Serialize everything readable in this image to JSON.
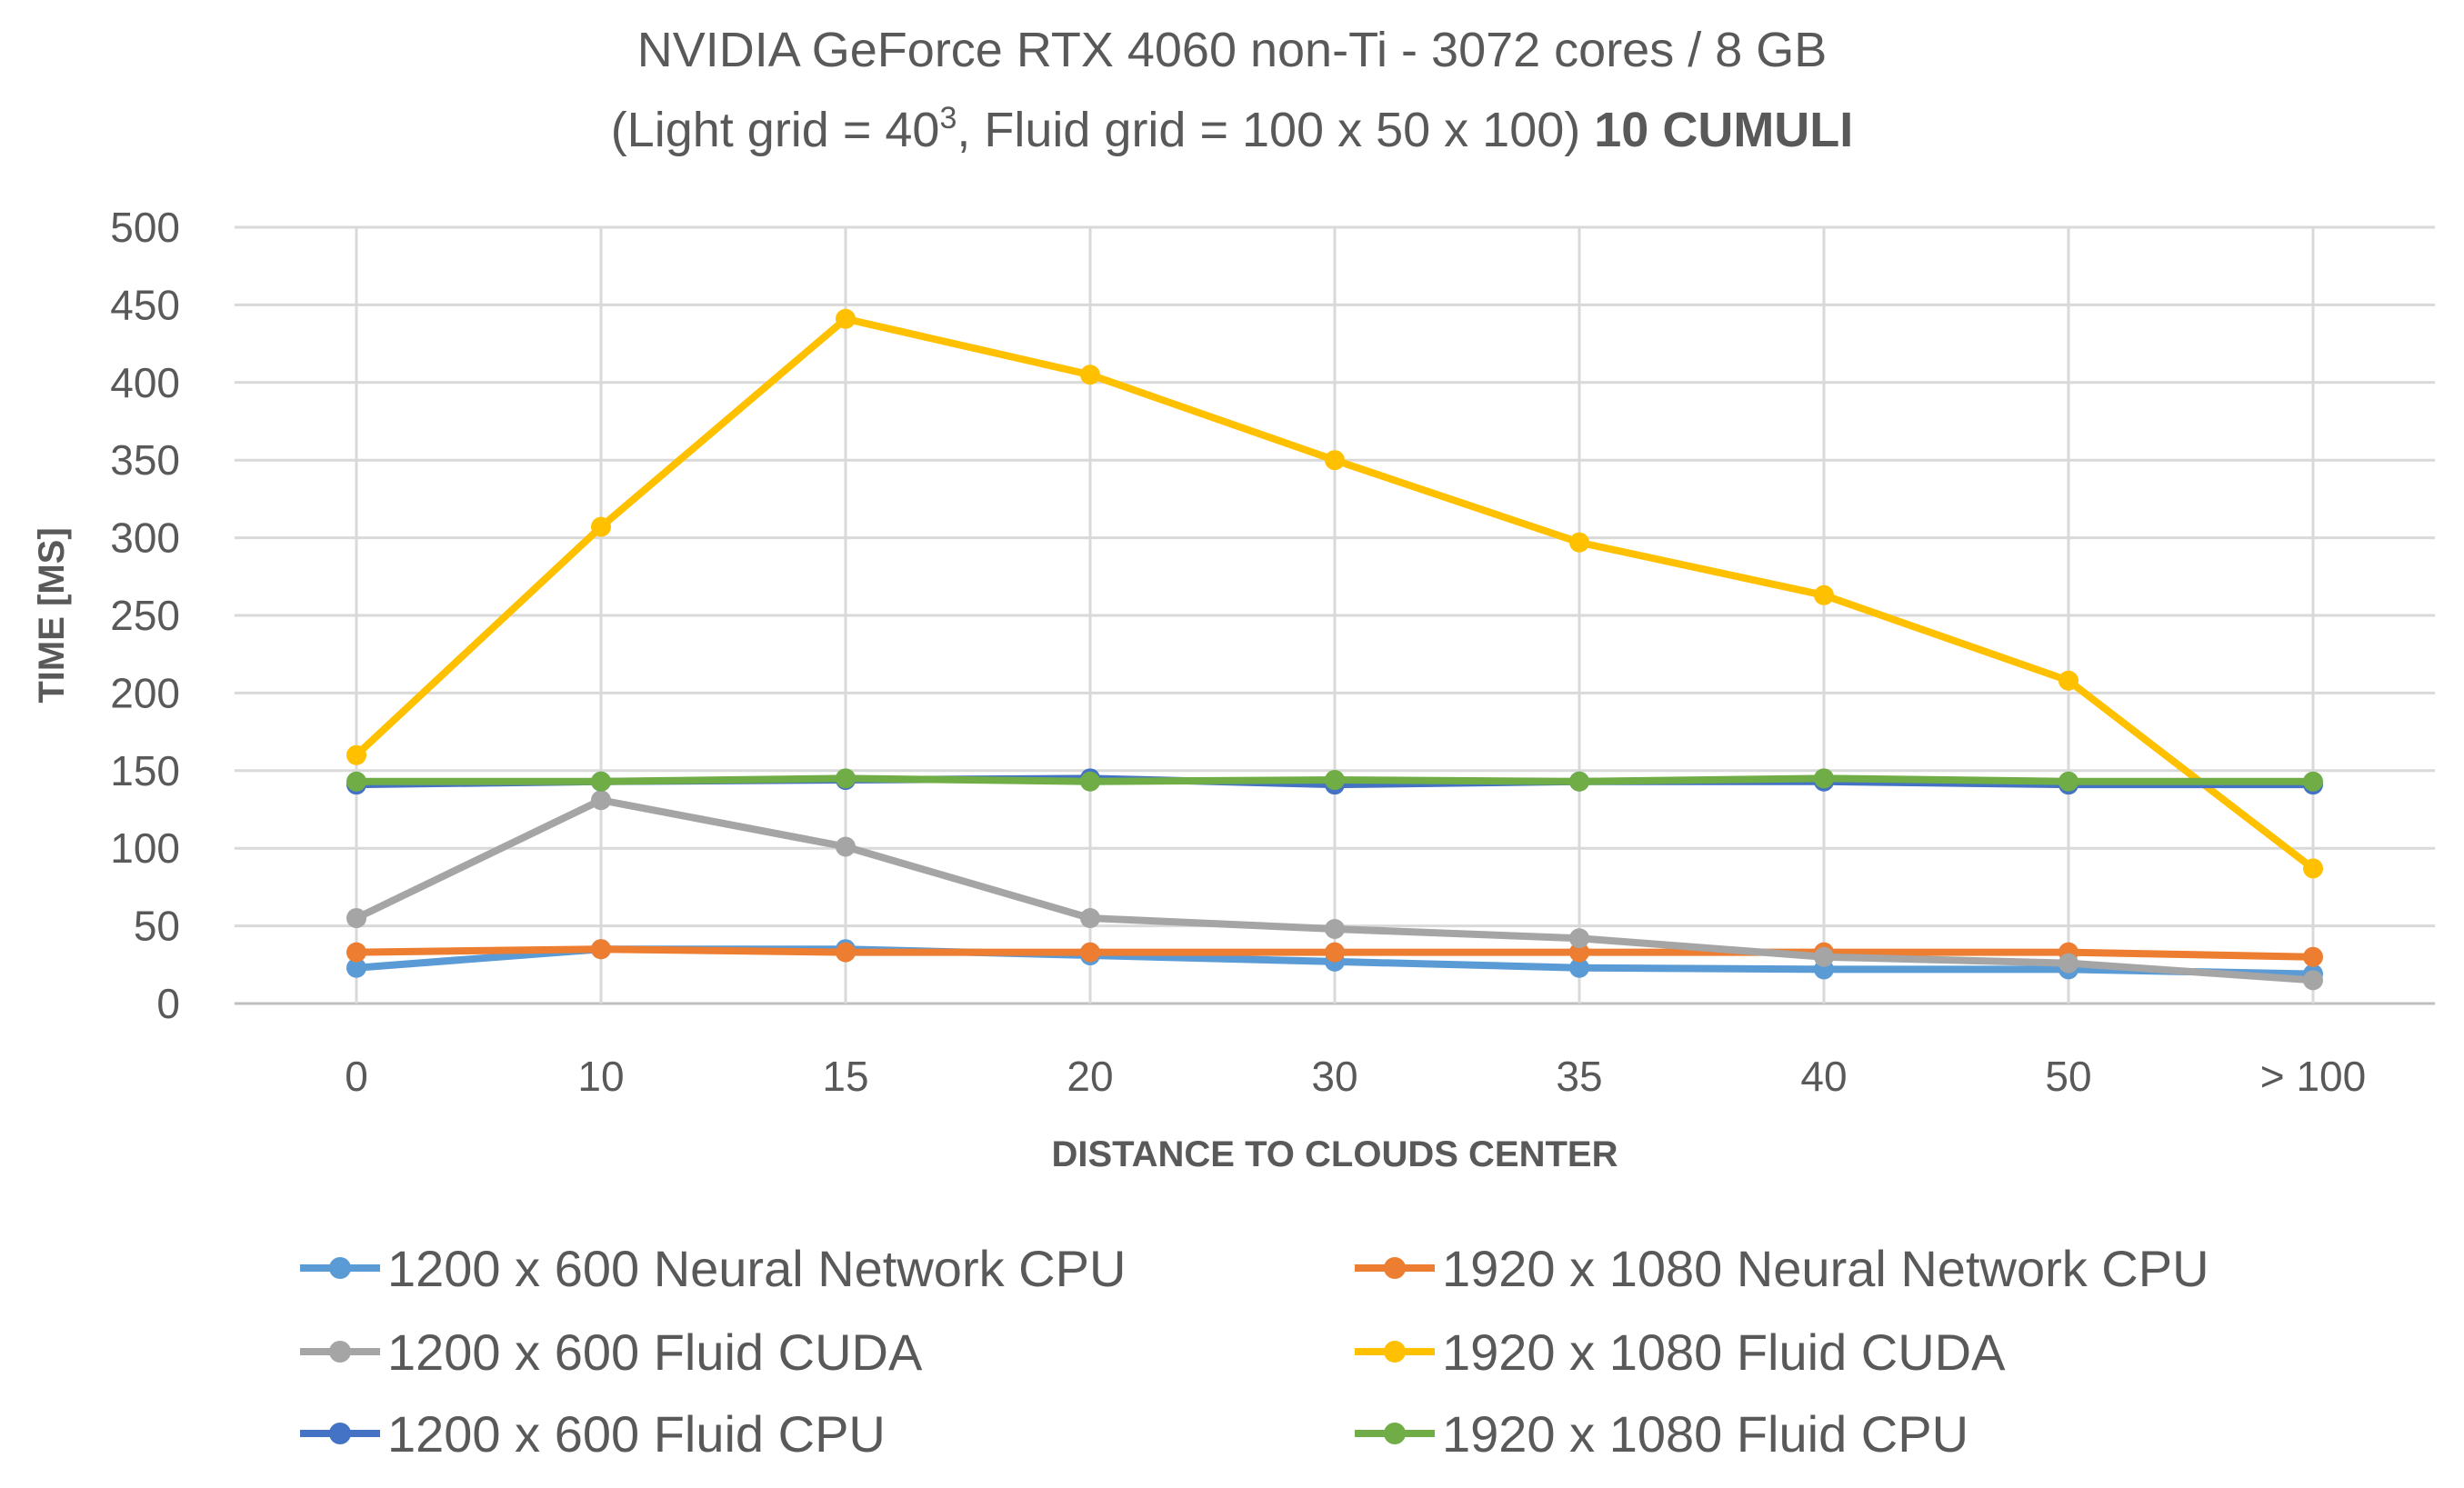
{
  "chart_data": {
    "type": "line",
    "title_line1": "NVIDIA GeForce RTX 4060 non-Ti - 3072 cores / 8 GB",
    "title_line2_prefix": "(Light grid = 40",
    "title_line2_sup": "3",
    "title_line2_middle": ", Fluid grid = 100 x 50 x 100) ",
    "title_line2_bold": "10 CUMULI",
    "xlabel": "DISTANCE TO CLOUDS CENTER",
    "ylabel": "TIME [MS]",
    "ylim": [
      0,
      500
    ],
    "yticks": [
      "0",
      "50",
      "100",
      "150",
      "200",
      "250",
      "300",
      "350",
      "400",
      "450",
      "500"
    ],
    "categories": [
      "0",
      "10",
      "15",
      "20",
      "30",
      "35",
      "40",
      "50",
      "> 100"
    ],
    "grid": true,
    "legend_position": "bottom",
    "series": [
      {
        "name": "1200 x 600 Neural Network CPU",
        "color": "#5B9BD5",
        "values": [
          23,
          35,
          35,
          31,
          27,
          23,
          22,
          22,
          19
        ]
      },
      {
        "name": "1920 x 1080 Neural Network  CPU",
        "color": "#ED7D31",
        "values": [
          33,
          35,
          33,
          33,
          33,
          33,
          33,
          33,
          30
        ]
      },
      {
        "name": "1200 x 600 Fluid CUDA",
        "color": "#A5A5A5",
        "values": [
          55,
          131,
          101,
          55,
          48,
          42,
          30,
          26,
          15
        ]
      },
      {
        "name": "1920 x 1080 Fluid CUDA",
        "color": "#FFC000",
        "values": [
          160,
          307,
          441,
          405,
          350,
          297,
          263,
          208,
          87
        ]
      },
      {
        "name": "1200 x 600 Fluid CPU",
        "color": "#4472C4",
        "values": [
          141,
          143,
          144,
          145,
          141,
          143,
          143,
          141,
          141
        ]
      },
      {
        "name": "1920 x 1080 Fluid CPU",
        "color": "#70AD47",
        "values": [
          143,
          143,
          145,
          143,
          144,
          143,
          145,
          143,
          143
        ]
      }
    ]
  }
}
